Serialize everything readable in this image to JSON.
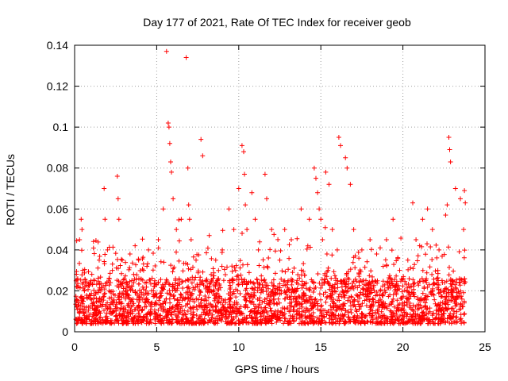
{
  "chart_data": {
    "type": "scatter",
    "title": "Day 177 of 2021, Rate Of TEC Index for receiver geob",
    "xlabel": "GPS time / hours",
    "ylabel": "ROTI / TECUs",
    "xlim": [
      0,
      25
    ],
    "ylim": [
      0,
      0.14
    ],
    "x_ticks": [
      "0",
      "5",
      "10",
      "15",
      "20",
      "25"
    ],
    "y_ticks": [
      "0",
      "0.02",
      "0.04",
      "0.06",
      "0.08",
      "0.1",
      "0.12",
      "0.14"
    ],
    "grid": true,
    "marker": "+",
    "color": "#ff0000",
    "series": [
      {
        "x": [
          0.1,
          0.3,
          0.4,
          0.45,
          0.5,
          0.6,
          0.7,
          0.9,
          1.2,
          1.5,
          1.8,
          1.85,
          2.0,
          2.3,
          2.6,
          2.65,
          2.7,
          2.9,
          3.2,
          3.6,
          3.9,
          4.2,
          4.5,
          4.8,
          5.1,
          5.4,
          5.6,
          5.7,
          5.75,
          5.8,
          5.85,
          5.9,
          6.0,
          6.2,
          6.5,
          6.8,
          6.9,
          6.95,
          7.0,
          7.1,
          7.4,
          7.7,
          7.8,
          8.2,
          8.6,
          9.0,
          9.4,
          9.7,
          10.0,
          10.2,
          10.3,
          10.35,
          10.4,
          10.5,
          10.8,
          11.0,
          11.2,
          11.6,
          11.7,
          12.0,
          12.5,
          12.8,
          13.2,
          13.8,
          14.3,
          14.6,
          14.7,
          14.8,
          14.9,
          15.0,
          15.1,
          15.3,
          15.5,
          15.7,
          16.0,
          16.1,
          16.2,
          16.5,
          16.6,
          16.8,
          17.0,
          17.5,
          18.0,
          18.4,
          18.8,
          19.0,
          19.4,
          19.8,
          20.3,
          20.6,
          20.8,
          21.2,
          21.5,
          21.8,
          22.2,
          22.6,
          22.7,
          22.8,
          22.85,
          22.9,
          23.2,
          23.5,
          23.7,
          23.75,
          23.8
        ],
        "y": [
          0.015,
          0.045,
          0.055,
          0.05,
          0.03,
          0.02,
          0.012,
          0.018,
          0.025,
          0.035,
          0.07,
          0.055,
          0.04,
          0.03,
          0.076,
          0.065,
          0.055,
          0.035,
          0.02,
          0.028,
          0.035,
          0.03,
          0.04,
          0.02,
          0.045,
          0.06,
          0.137,
          0.102,
          0.1,
          0.092,
          0.083,
          0.078,
          0.065,
          0.05,
          0.055,
          0.134,
          0.08,
          0.062,
          0.055,
          0.045,
          0.035,
          0.094,
          0.086,
          0.047,
          0.035,
          0.04,
          0.06,
          0.05,
          0.07,
          0.091,
          0.088,
          0.077,
          0.062,
          0.05,
          0.068,
          0.055,
          0.04,
          0.077,
          0.065,
          0.05,
          0.035,
          0.05,
          0.045,
          0.06,
          0.055,
          0.08,
          0.075,
          0.068,
          0.06,
          0.055,
          0.045,
          0.078,
          0.072,
          0.05,
          0.04,
          0.095,
          0.091,
          0.085,
          0.08,
          0.072,
          0.05,
          0.04,
          0.045,
          0.038,
          0.032,
          0.045,
          0.055,
          0.03,
          0.035,
          0.063,
          0.045,
          0.055,
          0.06,
          0.05,
          0.04,
          0.057,
          0.062,
          0.095,
          0.089,
          0.083,
          0.07,
          0.065,
          0.05,
          0.069,
          0.063
        ]
      }
    ]
  }
}
